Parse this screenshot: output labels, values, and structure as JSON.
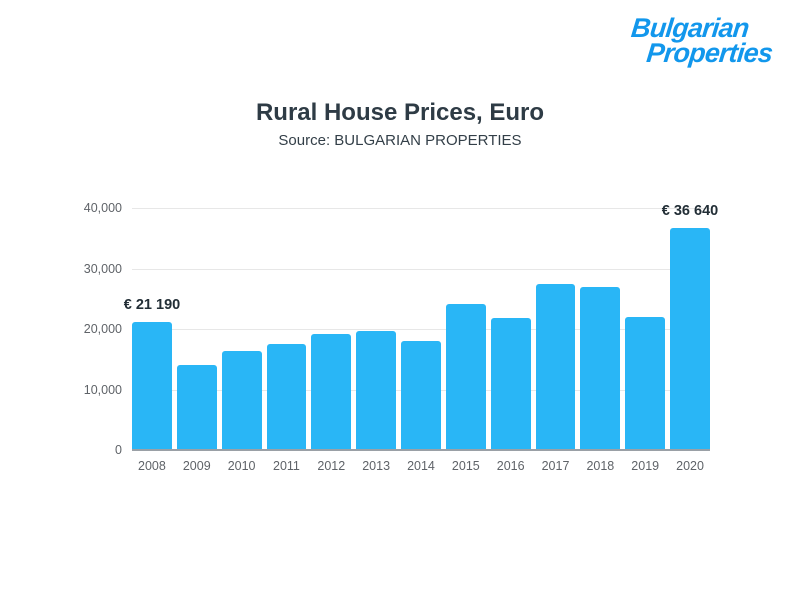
{
  "logo": {
    "line1": "Bulgarian",
    "line2": "Properties"
  },
  "chart_data": {
    "type": "bar",
    "title": "Rural House Prices, Euro",
    "subtitle": "Source: BULGARIAN PROPERTIES",
    "categories": [
      "2008",
      "2009",
      "2010",
      "2011",
      "2012",
      "2013",
      "2014",
      "2015",
      "2016",
      "2017",
      "2018",
      "2019",
      "2020"
    ],
    "values": [
      21190,
      14000,
      16400,
      17500,
      19200,
      19700,
      18000,
      24100,
      21800,
      27500,
      27000,
      22000,
      36640
    ],
    "ylim": [
      0,
      40000
    ],
    "yticks": [
      0,
      10000,
      20000,
      30000,
      40000
    ],
    "ytick_labels": [
      "0",
      "10,000",
      "20,000",
      "30,000",
      "40,000"
    ],
    "grid": true,
    "legend": "none",
    "bar_color": "#29b6f6",
    "annotations": [
      {
        "index": 0,
        "text": "€ 21 190"
      },
      {
        "index": 12,
        "text": "€ 36 640"
      }
    ]
  },
  "colors": {
    "bar": "#29b6f6",
    "logo": "#1297ec",
    "title": "#2e3b45",
    "axis": "#9aa0a6"
  }
}
